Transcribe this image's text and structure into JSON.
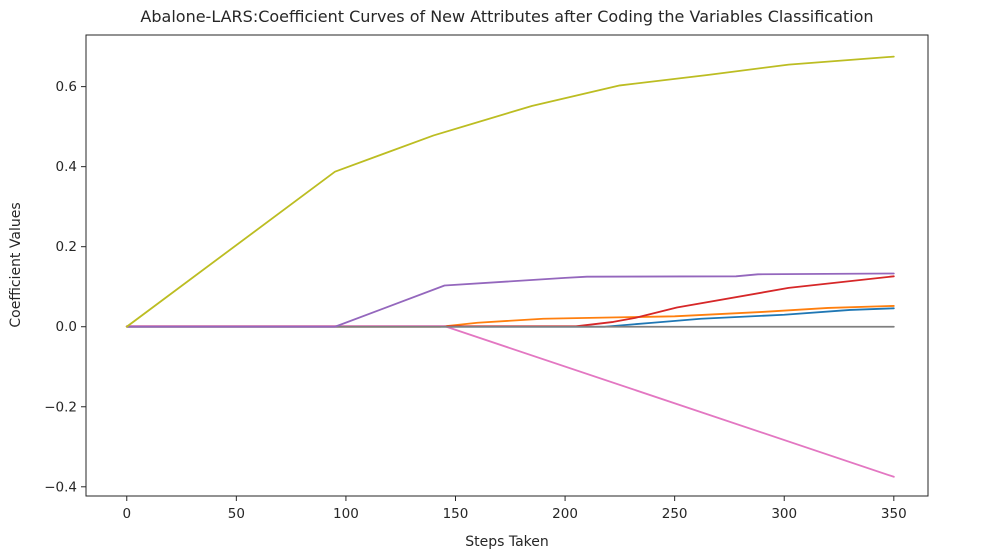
{
  "chart_data": {
    "type": "line",
    "title": "Abalone-LARS:Coefficient Curves of New Attributes after Coding the Variables Classification",
    "xlabel": "Steps Taken",
    "ylabel": "Coefficient Values",
    "xlim": [
      -18.6,
      365.6
    ],
    "ylim": [
      -0.423,
      0.729
    ],
    "grid": false,
    "legend": "none",
    "frame": true,
    "axis_color": "#262626",
    "background_color": "#ffffff",
    "x_ticks": [
      {
        "value": 0,
        "label": "0"
      },
      {
        "value": 50,
        "label": "50"
      },
      {
        "value": 100,
        "label": "100"
      },
      {
        "value": 150,
        "label": "150"
      },
      {
        "value": 200,
        "label": "200"
      },
      {
        "value": 250,
        "label": "250"
      },
      {
        "value": 300,
        "label": "300"
      },
      {
        "value": 350,
        "label": "350"
      }
    ],
    "y_ticks": [
      {
        "value": -0.4,
        "label": "−0.4"
      },
      {
        "value": -0.2,
        "label": "−0.2"
      },
      {
        "value": 0.0,
        "label": "0.0"
      },
      {
        "value": 0.2,
        "label": "0.2"
      },
      {
        "value": 0.4,
        "label": "0.4"
      },
      {
        "value": 0.6,
        "label": "0.6"
      }
    ],
    "series": [
      {
        "name": "attribute-blue",
        "color": "#1f77b4",
        "points": [
          [
            0,
            0
          ],
          [
            218,
            0
          ],
          [
            240,
            0.01
          ],
          [
            262,
            0.02
          ],
          [
            300,
            0.03
          ],
          [
            330,
            0.042
          ],
          [
            350,
            0.046
          ]
        ]
      },
      {
        "name": "attribute-orange",
        "color": "#ff7f0e",
        "points": [
          [
            0,
            0
          ],
          [
            143,
            0
          ],
          [
            160,
            0.01
          ],
          [
            190,
            0.02
          ],
          [
            250,
            0.026
          ],
          [
            290,
            0.037
          ],
          [
            320,
            0.047
          ],
          [
            350,
            0.052
          ]
        ]
      },
      {
        "name": "attribute-red",
        "color": "#d62728",
        "points": [
          [
            0,
            0.001
          ],
          [
            205,
            0.001
          ],
          [
            222,
            0.012
          ],
          [
            232,
            0.022
          ],
          [
            251,
            0.048
          ],
          [
            302,
            0.097
          ],
          [
            350,
            0.126
          ]
        ]
      },
      {
        "name": "attribute-pink",
        "color": "#e377c2",
        "points": [
          [
            0,
            0.0015
          ],
          [
            145,
            0.0015
          ],
          [
            350,
            -0.375
          ]
        ]
      },
      {
        "name": "attribute-gray",
        "color": "#7f7f7f",
        "points": [
          [
            0,
            0
          ],
          [
            350,
            0
          ]
        ]
      },
      {
        "name": "attribute-purple",
        "color": "#9467bd",
        "points": [
          [
            0,
            0
          ],
          [
            95,
            0
          ],
          [
            145,
            0.103
          ],
          [
            200,
            0.122
          ],
          [
            210,
            0.125
          ],
          [
            278,
            0.126
          ],
          [
            288,
            0.131
          ],
          [
            350,
            0.133
          ]
        ]
      },
      {
        "name": "attribute-olive",
        "color": "#bcbd22",
        "points": [
          [
            0,
            0
          ],
          [
            95,
            0.3875
          ],
          [
            140,
            0.478
          ],
          [
            185,
            0.552
          ],
          [
            225,
            0.603
          ],
          [
            265,
            0.629
          ],
          [
            302,
            0.655
          ],
          [
            350,
            0.675
          ]
        ]
      }
    ]
  }
}
